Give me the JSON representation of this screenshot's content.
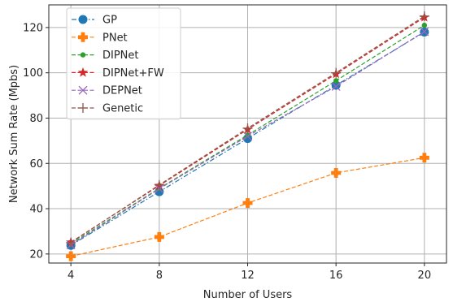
{
  "chart_data": {
    "type": "line",
    "xlabel": "Number of Users",
    "ylabel": "Network Sum Rate (Mpbs)",
    "x": [
      4,
      8,
      12,
      16,
      20
    ],
    "xticks": [
      4,
      8,
      12,
      16,
      20
    ],
    "yticks": [
      20,
      40,
      60,
      80,
      100,
      120
    ],
    "xlim": [
      3,
      21
    ],
    "ylim": [
      16,
      130
    ],
    "grid": true,
    "legend_position": "top-left",
    "series": [
      {
        "name": "GP",
        "values": [
          23.8,
          47.5,
          71.0,
          94.5,
          118.0
        ],
        "color": "#1f77b4",
        "marker": "circle",
        "linestyle": "dash-dot"
      },
      {
        "name": "PNet",
        "values": [
          19.0,
          27.5,
          42.5,
          55.8,
          62.5
        ],
        "color": "#ff7f0e",
        "marker": "plus-filled",
        "linestyle": "dashed"
      },
      {
        "name": "DIPNet",
        "values": [
          24.5,
          49.0,
          72.5,
          96.5,
          121.0
        ],
        "color": "#2ca02c",
        "marker": "dot",
        "linestyle": "dashed"
      },
      {
        "name": "DIPNet+FW",
        "values": [
          25.2,
          50.2,
          75.0,
          99.5,
          124.5
        ],
        "color": "#d62728",
        "marker": "star",
        "linestyle": "dashed"
      },
      {
        "name": "DEPNet",
        "values": [
          24.0,
          48.8,
          72.0,
          94.0,
          118.2
        ],
        "color": "#9467bd",
        "marker": "x",
        "linestyle": "dashed"
      },
      {
        "name": "Genetic",
        "values": [
          25.0,
          50.5,
          75.5,
          100.0,
          125.0
        ],
        "color": "#8c564b",
        "marker": "plus",
        "linestyle": "dashed"
      }
    ]
  }
}
